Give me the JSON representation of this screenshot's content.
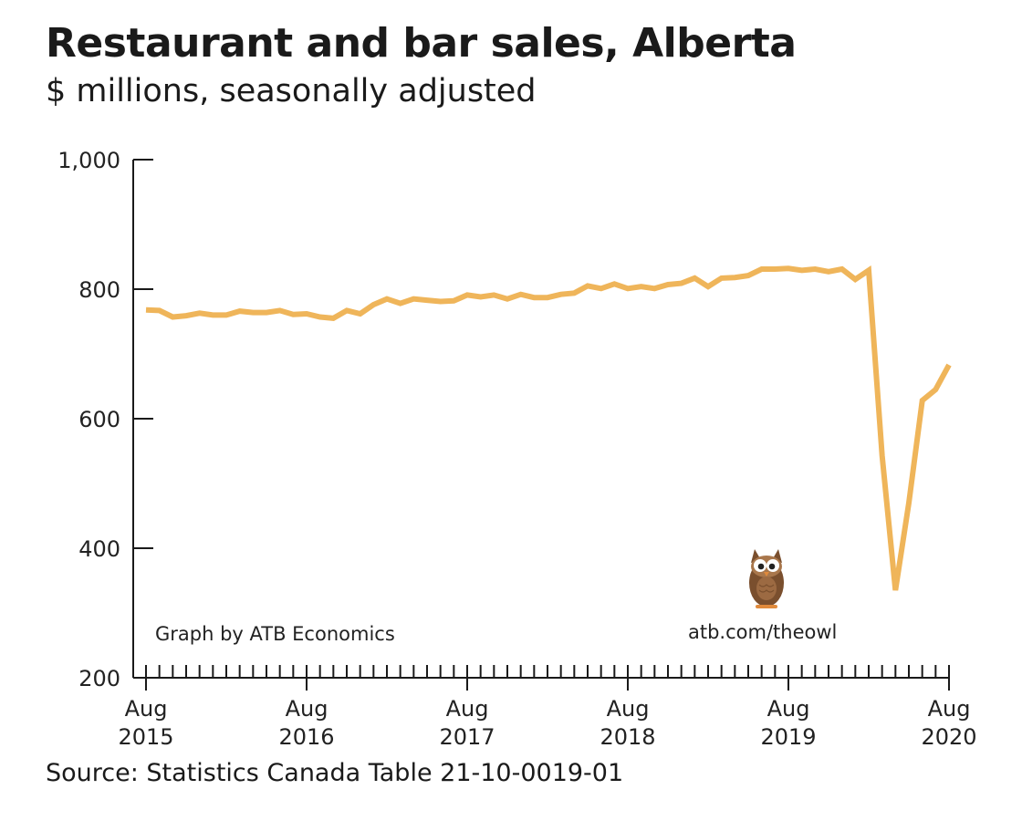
{
  "header": {
    "title": "Restaurant and bar sales, Alberta",
    "subtitle": "$ millions, seasonally adjusted"
  },
  "footer": {
    "source": "Source: Statistics Canada Table 21-10-0019-01"
  },
  "annotations": {
    "credit": "Graph by ATB Economics",
    "site": "atb.com/theowl",
    "logo_icon": "owl-icon"
  },
  "colors": {
    "line": "#EFB55A",
    "axis": "#1a1a1a",
    "owl_body": "#7A4F2E",
    "owl_face": "#A9774C"
  },
  "chart_data": {
    "type": "line",
    "title": "Restaurant and bar sales, Alberta",
    "subtitle": "$ millions, seasonally adjusted",
    "xlabel": "",
    "ylabel": "",
    "ylim": [
      200,
      1000
    ],
    "yticks": [
      {
        "value": 1000,
        "label": "1,000"
      },
      {
        "value": 800,
        "label": "800"
      },
      {
        "value": 600,
        "label": "600"
      },
      {
        "value": 400,
        "label": "400"
      },
      {
        "value": 200,
        "label": "200"
      }
    ],
    "xticks": [
      {
        "month": "Aug",
        "year": "2015",
        "index": 0
      },
      {
        "month": "Aug",
        "year": "2016",
        "index": 12
      },
      {
        "month": "Aug",
        "year": "2017",
        "index": 24
      },
      {
        "month": "Aug",
        "year": "2018",
        "index": 36
      },
      {
        "month": "Aug",
        "year": "2019",
        "index": 48
      },
      {
        "month": "Aug",
        "year": "2020",
        "index": 60
      }
    ],
    "grid": false,
    "legend": "none",
    "series": [
      {
        "values": [
          768,
          767,
          757,
          759,
          763,
          760,
          760,
          766,
          764,
          764,
          767,
          761,
          762,
          757,
          755,
          767,
          762,
          776,
          785,
          778,
          785,
          783,
          781,
          782,
          791,
          788,
          791,
          785,
          792,
          787,
          787,
          792,
          794,
          805,
          801,
          808,
          801,
          804,
          801,
          807,
          809,
          817,
          804,
          817,
          818,
          821,
          831,
          831,
          832,
          829,
          831,
          827,
          831,
          815,
          829,
          543,
          335,
          470,
          628,
          645,
          683
        ]
      }
    ]
  }
}
